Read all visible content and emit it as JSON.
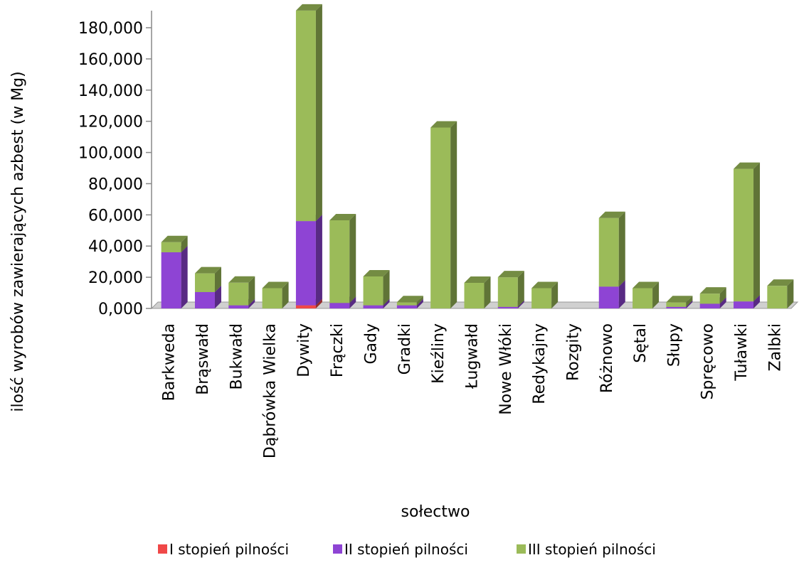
{
  "chart_data": {
    "type": "bar3d_stacked",
    "x_label": "sołectwo",
    "y_label": "ilość wyrobów zawierających azbest (w Mg)",
    "categories": [
      "Barkweda",
      "Brąswałd",
      "Bukwałd",
      "Dąbrówka Wielka",
      "Dywity",
      "Frączki",
      "Gady",
      "Gradki",
      "Kieźliny",
      "Ługwałd",
      "Nowe Włóki",
      "Redykajny",
      "Rozgity",
      "Różnowo",
      "Sętal",
      "Słupy",
      "Spręcowo",
      "Tuławki",
      "Zalbki"
    ],
    "series": [
      {
        "name": "I stopień pilności",
        "color": "#f04848",
        "values": [
          0,
          0,
          0,
          0,
          2,
          0,
          0,
          0,
          0,
          0,
          0,
          0,
          0,
          0,
          0,
          0,
          0,
          0,
          0
        ]
      },
      {
        "name": "II stopień pilności",
        "color": "#8e44d4",
        "values": [
          36,
          10.5,
          2,
          0,
          54,
          3.5,
          2,
          2,
          0,
          0,
          1,
          0,
          0,
          14,
          0,
          1,
          3,
          4.5,
          0
        ]
      },
      {
        "name": "III stopień pilności",
        "color": "#9bbb59",
        "values": [
          6.5,
          12,
          14.5,
          13,
          135,
          53,
          18.5,
          2,
          116,
          16.4,
          19,
          13,
          0,
          44,
          13,
          3,
          6.5,
          85,
          14.5
        ]
      }
    ],
    "ylim": [
      0,
      180
    ],
    "yticks": [
      {
        "value": 0,
        "label": "0,000"
      },
      {
        "value": 20,
        "label": "20,000"
      },
      {
        "value": 40,
        "label": "40,000"
      },
      {
        "value": 60,
        "label": "60,000"
      },
      {
        "value": 80,
        "label": "80,000"
      },
      {
        "value": 100,
        "label": "100,000"
      },
      {
        "value": 120,
        "label": "120,000"
      },
      {
        "value": 140,
        "label": "140,000"
      },
      {
        "value": 160,
        "label": "160,000"
      },
      {
        "value": 180,
        "label": "180,000"
      }
    ],
    "legend": "bottom"
  }
}
